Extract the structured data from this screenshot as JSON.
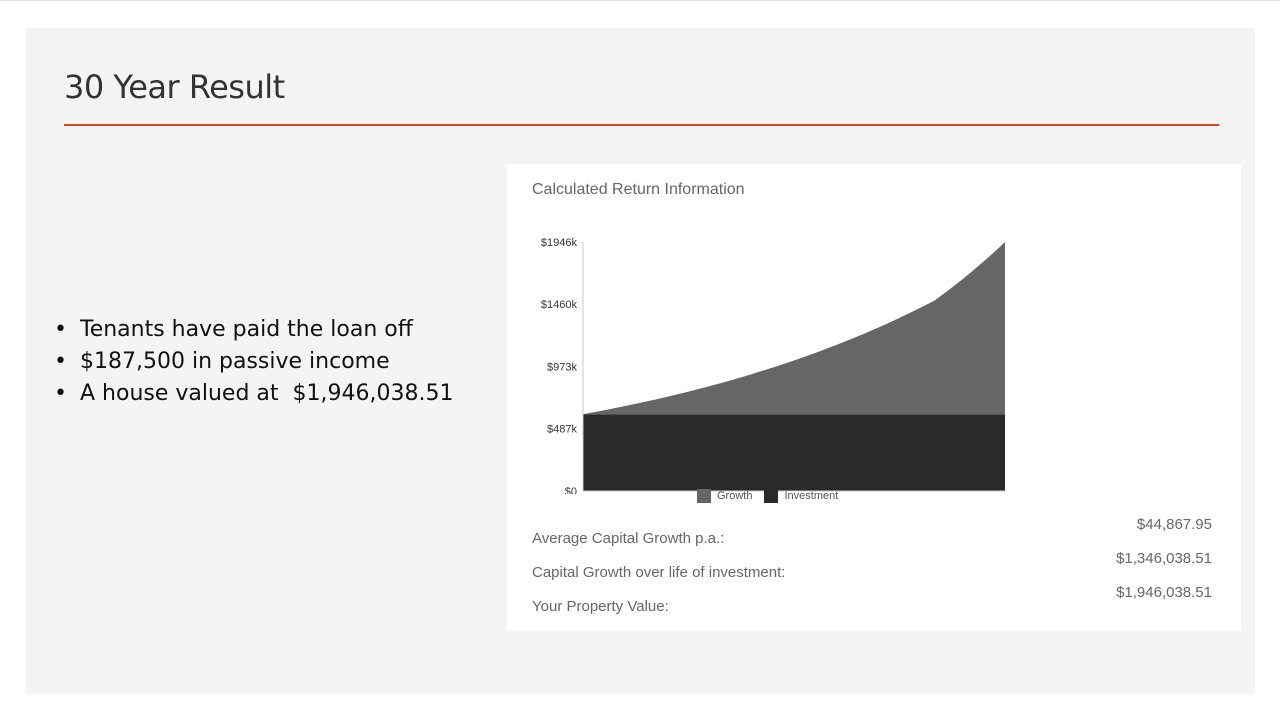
{
  "slide": {
    "title": "30 Year Result",
    "accent_color": "#e0442a",
    "bullets": [
      "Tenants have paid the loan off",
      "$187,500 in passive income",
      "A house valued at  $1,946,038.51"
    ]
  },
  "panel": {
    "title": "Calculated Return Information",
    "stats": [
      {
        "label": "Average Capital Growth p.a.:",
        "value": "$44,867.95"
      },
      {
        "label": "Capital Growth over life of investment:",
        "value": "$1,346,038.51"
      },
      {
        "label": "Your Property Value:",
        "value": "$1,946,038.51"
      }
    ]
  },
  "chart_data": {
    "type": "area",
    "stacked": true,
    "x": [
      0,
      5,
      10,
      15,
      20,
      25,
      30
    ],
    "x_ticks": [
      "0",
      "5",
      "10",
      "15",
      "20",
      "25",
      "30"
    ],
    "y_ticks": [
      {
        "value": 0,
        "label": "$0"
      },
      {
        "value": 487,
        "label": "$487k"
      },
      {
        "value": 973,
        "label": "$973k"
      },
      {
        "value": 1460,
        "label": "$1460k"
      },
      {
        "value": 1946,
        "label": "$1946k"
      }
    ],
    "xlim": [
      0,
      30
    ],
    "ylim": [
      0,
      1946
    ],
    "grid": false,
    "legend_position": "bottom",
    "series": [
      {
        "name": "Investment",
        "color": "#2a2a2a",
        "values": [
          600,
          600,
          600,
          600,
          600,
          600,
          600
        ]
      },
      {
        "name": "Growth",
        "color": "#666666",
        "values": [
          0,
          111,
          249,
          420,
          630,
          889,
          1346
        ]
      }
    ],
    "legend": [
      {
        "name": "Growth",
        "color": "#666666"
      },
      {
        "name": "Investment",
        "color": "#2a2a2a"
      }
    ]
  }
}
